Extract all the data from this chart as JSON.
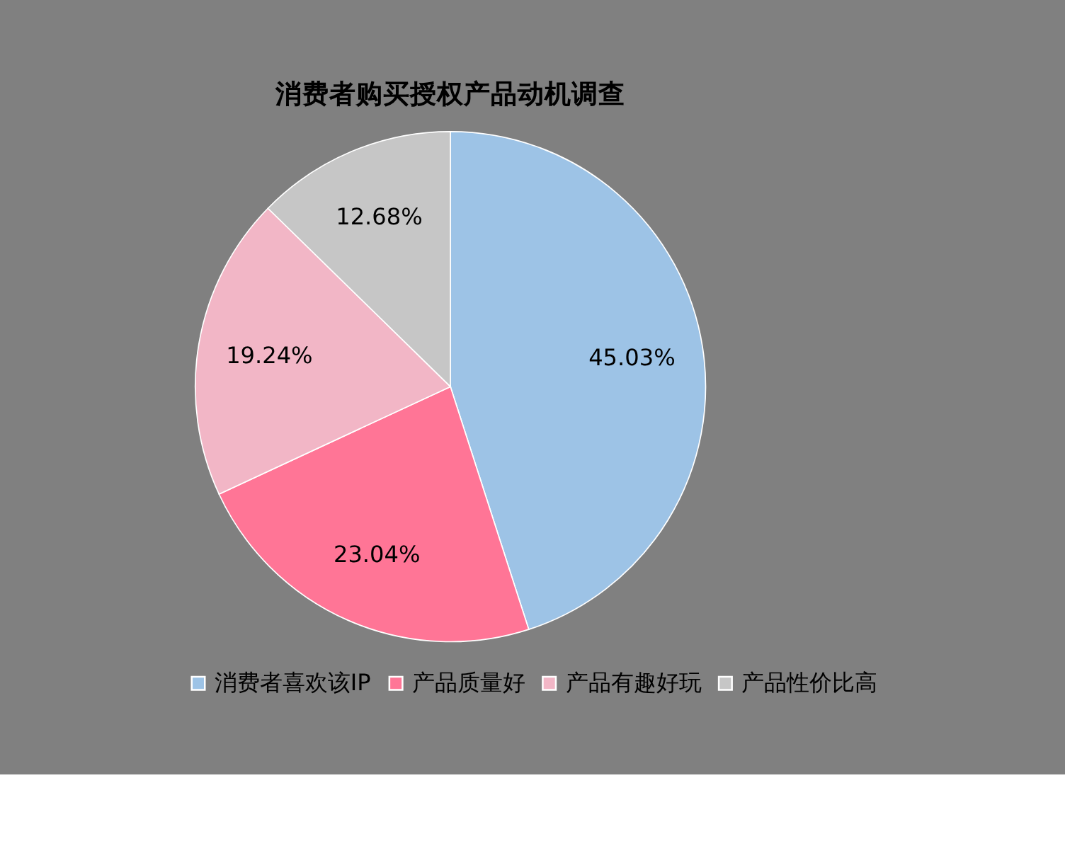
{
  "chart_data": {
    "type": "pie",
    "title": "消费者购买授权产品动机调查",
    "categories": [
      "消费者喜欢该IP",
      "产品质量好",
      "产品有趣好玩",
      "产品性价比高"
    ],
    "values": [
      45.03,
      23.04,
      19.24,
      12.68
    ],
    "colors": [
      "#9dc3e6",
      "#ff7596",
      "#f2b6c6",
      "#c6c6c6"
    ],
    "value_labels": [
      "45.03%",
      "23.04%",
      "19.24%",
      "12.68%"
    ],
    "legend": "bottom"
  }
}
